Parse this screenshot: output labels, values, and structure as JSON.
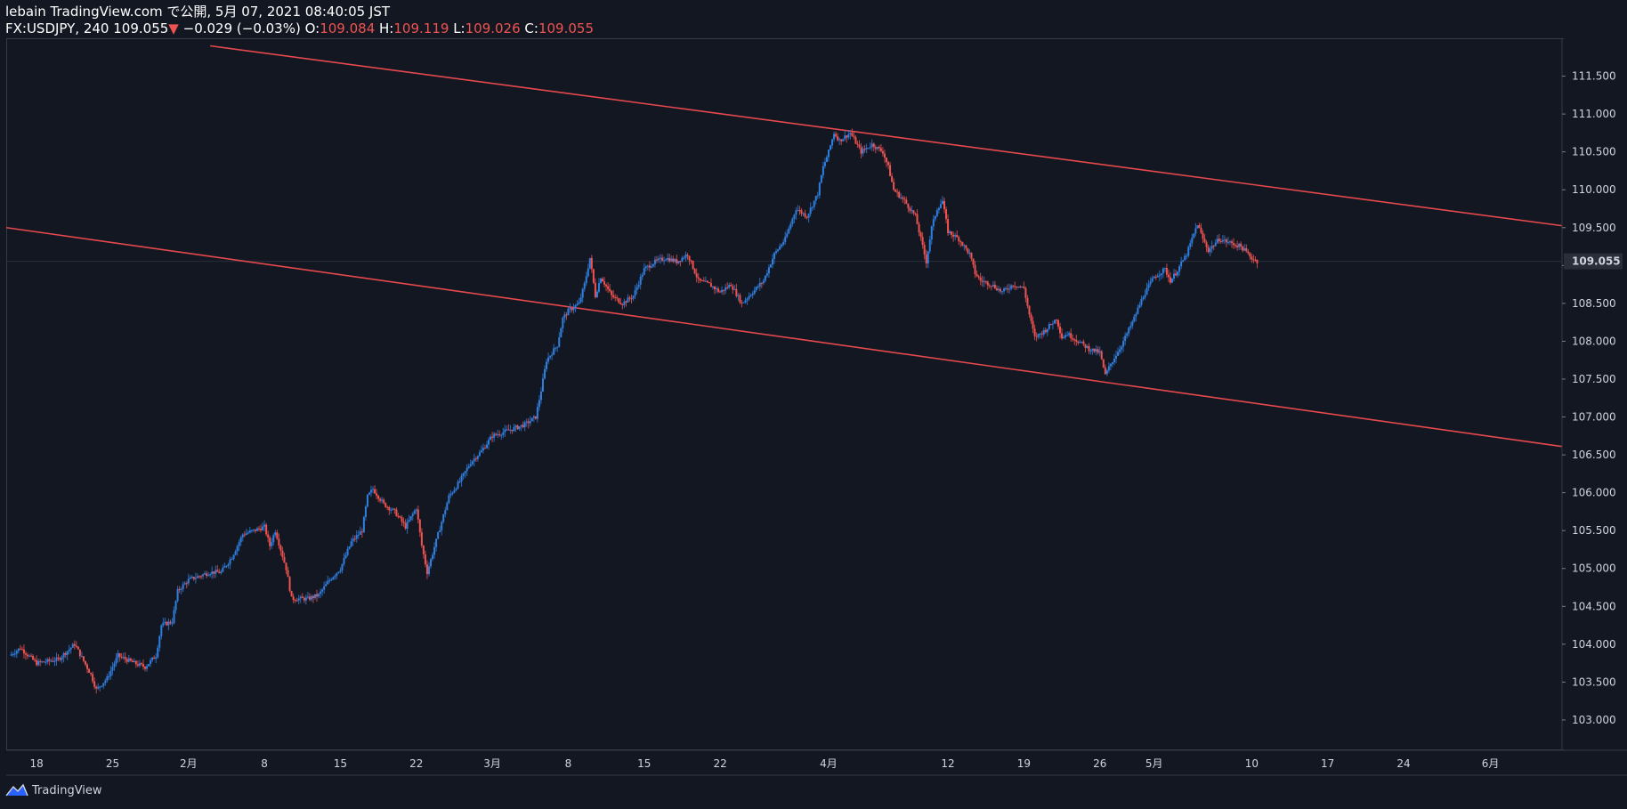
{
  "header": {
    "line1": "lebain TradingView.com で公開, 5月 07, 2021 08:40:05 JST",
    "symbol": "FX:USDJPY, 240",
    "last": "109.055",
    "change_arrow": "▼",
    "change": "−0.029 (−0.03%)",
    "o_label": "O:",
    "o": "109.084",
    "h_label": "H:",
    "h": "109.119",
    "l_label": "L:",
    "l": "109.026",
    "c_label": "C:",
    "c": "109.055"
  },
  "footer": {
    "brand": "TradingView"
  },
  "colors": {
    "background": "#131722",
    "up": "#2f7fe0",
    "down": "#ef5350",
    "trendline": "#e5494d",
    "axis_text": "#d1d4dc",
    "price_tag_bg": "#2a2e39"
  },
  "chart_data": {
    "type": "candlestick",
    "symbol": "FX:USDJPY",
    "interval": "240",
    "y_axis": {
      "ticks": [
        "111.500",
        "111.000",
        "110.500",
        "110.000",
        "109.500",
        "109.000",
        "108.500",
        "108.000",
        "107.500",
        "107.000",
        "106.500",
        "106.000",
        "105.500",
        "105.000",
        "104.500",
        "104.000",
        "103.500",
        "103.000"
      ],
      "ylim": [
        102.6,
        112.0
      ],
      "last_price_label": "109.055"
    },
    "x_axis": {
      "ticks": [
        {
          "label": "18",
          "day": 0
        },
        {
          "label": "25",
          "day": 7
        },
        {
          "label": "2月",
          "day": 14
        },
        {
          "label": "8",
          "day": 21
        },
        {
          "label": "15",
          "day": 28
        },
        {
          "label": "22",
          "day": 35
        },
        {
          "label": "3月",
          "day": 42
        },
        {
          "label": "8",
          "day": 49
        },
        {
          "label": "15",
          "day": 56
        },
        {
          "label": "22",
          "day": 63
        },
        {
          "label": "4月",
          "day": 73
        },
        {
          "label": "12",
          "day": 84
        },
        {
          "label": "19",
          "day": 91
        },
        {
          "label": "26",
          "day": 98
        },
        {
          "label": "5月",
          "day": 103
        },
        {
          "label": "10",
          "day": 112
        },
        {
          "label": "17",
          "day": 119
        },
        {
          "label": "24",
          "day": 126
        },
        {
          "label": "6月",
          "day": 134
        }
      ],
      "xlim": [
        -2.8,
        140.6
      ]
    },
    "price_path": [
      [
        -2.5,
        103.85
      ],
      [
        -1.5,
        103.95
      ],
      [
        0,
        103.75
      ],
      [
        2,
        103.8
      ],
      [
        3.5,
        104.0
      ],
      [
        5,
        103.6
      ],
      [
        5.5,
        103.4
      ],
      [
        6.5,
        103.55
      ],
      [
        7.5,
        103.85
      ],
      [
        9,
        103.75
      ],
      [
        10,
        103.7
      ],
      [
        11,
        103.85
      ],
      [
        11.5,
        104.25
      ],
      [
        12.5,
        104.3
      ],
      [
        13,
        104.7
      ],
      [
        14,
        104.85
      ],
      [
        15,
        104.9
      ],
      [
        16,
        104.95
      ],
      [
        17,
        104.95
      ],
      [
        18,
        105.15
      ],
      [
        19,
        105.45
      ],
      [
        20,
        105.5
      ],
      [
        21,
        105.55
      ],
      [
        21.5,
        105.3
      ],
      [
        22,
        105.5
      ],
      [
        23,
        105.0
      ],
      [
        23.5,
        104.6
      ],
      [
        25,
        104.6
      ],
      [
        26,
        104.65
      ],
      [
        27,
        104.85
      ],
      [
        28,
        105.0
      ],
      [
        29,
        105.35
      ],
      [
        30,
        105.5
      ],
      [
        30.5,
        105.95
      ],
      [
        31,
        106.05
      ],
      [
        32,
        105.85
      ],
      [
        33,
        105.75
      ],
      [
        34,
        105.55
      ],
      [
        35,
        105.8
      ],
      [
        35.5,
        105.3
      ],
      [
        36,
        104.95
      ],
      [
        36.5,
        105.2
      ],
      [
        37,
        105.45
      ],
      [
        38,
        105.95
      ],
      [
        39,
        106.15
      ],
      [
        40,
        106.4
      ],
      [
        41,
        106.55
      ],
      [
        42,
        106.75
      ],
      [
        43,
        106.8
      ],
      [
        44,
        106.85
      ],
      [
        45,
        106.9
      ],
      [
        46,
        107.0
      ],
      [
        46.5,
        107.35
      ],
      [
        47,
        107.75
      ],
      [
        48,
        107.95
      ],
      [
        48.5,
        108.3
      ],
      [
        49,
        108.4
      ],
      [
        50,
        108.5
      ],
      [
        50.5,
        108.75
      ],
      [
        51,
        109.1
      ],
      [
        51.5,
        108.6
      ],
      [
        52,
        108.85
      ],
      [
        53,
        108.6
      ],
      [
        54,
        108.5
      ],
      [
        55,
        108.6
      ],
      [
        56,
        108.95
      ],
      [
        57,
        109.05
      ],
      [
        58,
        109.1
      ],
      [
        59,
        109.05
      ],
      [
        60,
        109.15
      ],
      [
        61,
        108.8
      ],
      [
        62,
        108.75
      ],
      [
        63,
        108.65
      ],
      [
        64,
        108.75
      ],
      [
        65,
        108.5
      ],
      [
        66,
        108.65
      ],
      [
        67,
        108.8
      ],
      [
        68,
        109.15
      ],
      [
        69,
        109.35
      ],
      [
        70,
        109.75
      ],
      [
        71,
        109.65
      ],
      [
        72,
        109.95
      ],
      [
        72.5,
        110.3
      ],
      [
        73,
        110.5
      ],
      [
        73.5,
        110.75
      ],
      [
        74,
        110.65
      ],
      [
        75,
        110.75
      ],
      [
        76,
        110.5
      ],
      [
        77,
        110.6
      ],
      [
        78,
        110.5
      ],
      [
        78.5,
        110.3
      ],
      [
        79,
        110.0
      ],
      [
        80,
        109.85
      ],
      [
        81,
        109.65
      ],
      [
        81.5,
        109.35
      ],
      [
        82,
        109.05
      ],
      [
        82.5,
        109.5
      ],
      [
        83,
        109.75
      ],
      [
        83.5,
        109.85
      ],
      [
        84,
        109.45
      ],
      [
        85,
        109.35
      ],
      [
        86,
        109.15
      ],
      [
        86.5,
        108.9
      ],
      [
        87,
        108.8
      ],
      [
        88,
        108.75
      ],
      [
        89,
        108.65
      ],
      [
        90,
        108.75
      ],
      [
        91,
        108.7
      ],
      [
        91.5,
        108.35
      ],
      [
        92,
        108.05
      ],
      [
        93,
        108.15
      ],
      [
        94,
        108.3
      ],
      [
        94.5,
        108.05
      ],
      [
        95,
        108.1
      ],
      [
        96,
        108.0
      ],
      [
        97,
        107.9
      ],
      [
        98,
        107.85
      ],
      [
        98.5,
        107.55
      ],
      [
        99,
        107.7
      ],
      [
        100,
        107.95
      ],
      [
        101,
        108.25
      ],
      [
        102,
        108.6
      ],
      [
        103,
        108.85
      ],
      [
        104,
        108.95
      ],
      [
        104.5,
        108.8
      ],
      [
        105,
        108.9
      ],
      [
        106,
        109.15
      ],
      [
        107,
        109.55
      ],
      [
        107.5,
        109.35
      ],
      [
        108,
        109.2
      ],
      [
        109,
        109.35
      ],
      [
        110,
        109.3
      ],
      [
        111,
        109.25
      ],
      [
        112,
        109.1
      ],
      [
        112.5,
        109.055
      ]
    ],
    "trendlines": [
      {
        "from": [
          -2.8,
          109.5
        ],
        "to": [
          140.6,
          106.61
        ]
      },
      {
        "from": [
          16,
          111.9
        ],
        "to": [
          140.6,
          109.525
        ]
      }
    ]
  }
}
